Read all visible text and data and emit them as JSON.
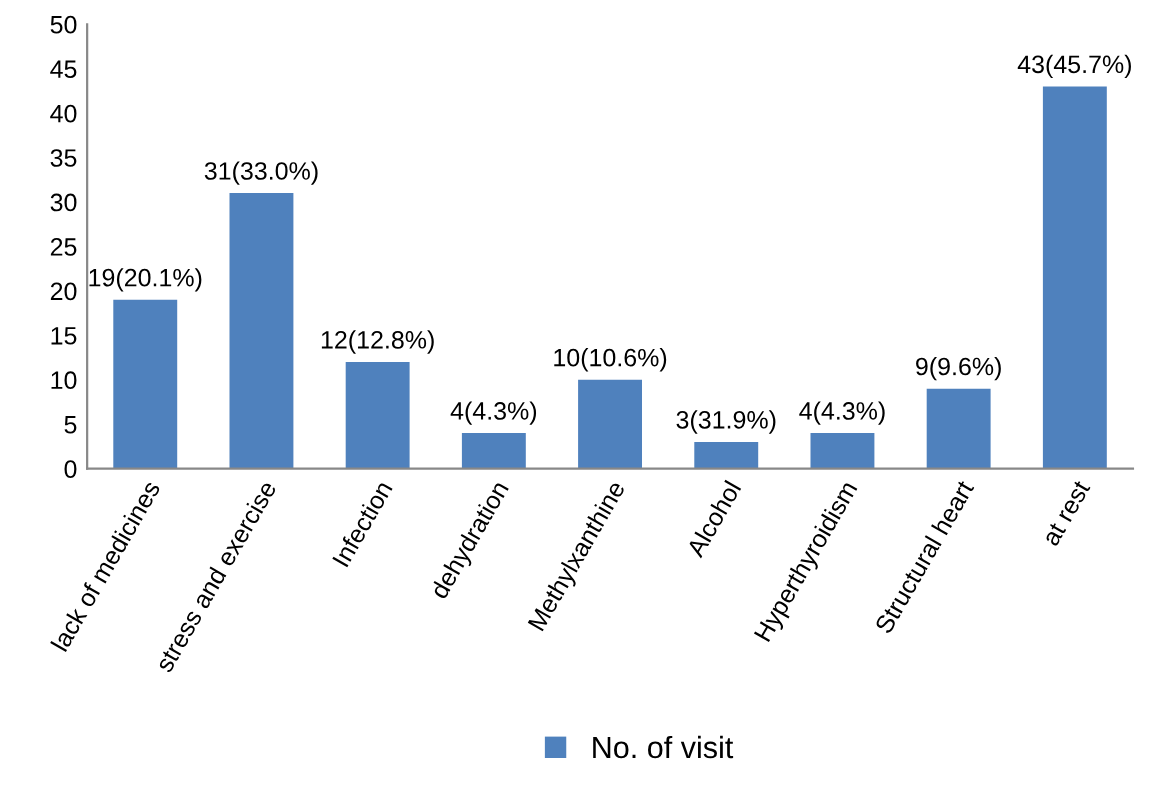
{
  "chart_data": {
    "type": "bar",
    "categories": [
      "lack of medicines",
      "stress and exercise",
      "Infection",
      "dehydration",
      "Methylxanthine",
      "Alcohol",
      "Hyperthyroidism",
      "Structural heart",
      "at rest"
    ],
    "series": [
      {
        "name": "No. of visit",
        "color": "#4f81bd",
        "values": [
          19,
          31,
          12,
          4,
          10,
          3,
          4,
          9,
          43
        ],
        "value_labels": [
          "19(20.1%)",
          "31(33.0%)",
          "12(12.8%)",
          "4(4.3%)",
          "10(10.6%)",
          "3(31.9%)",
          "4(4.3%)",
          "9(9.6%)",
          "43(45.7%)"
        ]
      }
    ],
    "ylim": [
      0,
      50
    ],
    "yticks": [
      0,
      5,
      10,
      15,
      20,
      25,
      30,
      35,
      40,
      45,
      50
    ],
    "grid": false,
    "legend": "bottom"
  }
}
